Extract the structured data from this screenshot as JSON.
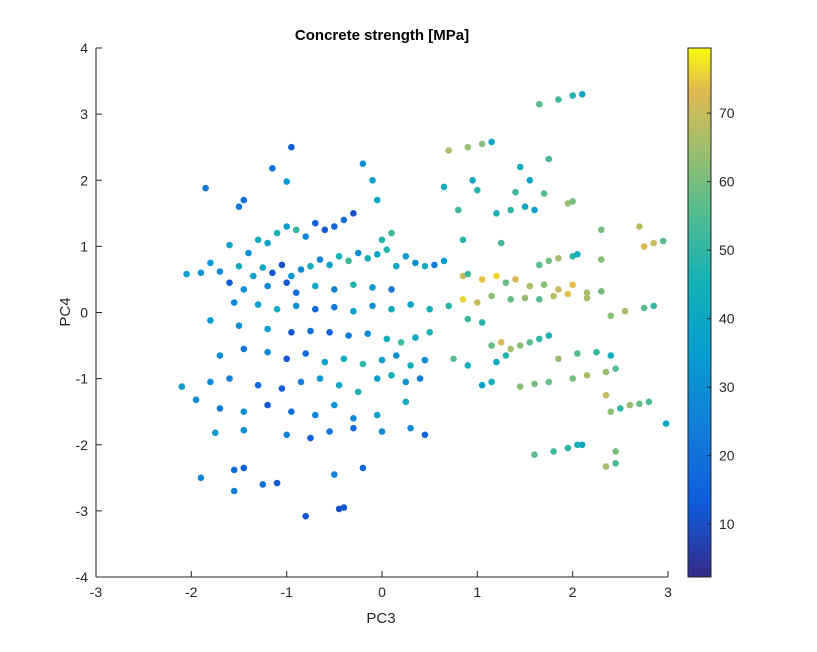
{
  "chart_data": {
    "type": "scatter",
    "title": "Concrete strength [MPa]",
    "xlabel": "PC3",
    "ylabel": "PC4",
    "xlim": [
      -3,
      3
    ],
    "ylim": [
      -4,
      4
    ],
    "xticks": [
      "-3",
      "-2",
      "-1",
      "0",
      "1",
      "2",
      "3"
    ],
    "yticks": [
      "-4",
      "-3",
      "-2",
      "-1",
      "0",
      "1",
      "2",
      "3",
      "4"
    ],
    "grid": false,
    "colormap": "parula",
    "colorbar": {
      "range": [
        2.3,
        79.5
      ],
      "ticks": [
        "10",
        "20",
        "30",
        "40",
        "50",
        "60",
        "70"
      ],
      "tick_values": [
        10,
        20,
        30,
        40,
        50,
        60,
        70
      ]
    },
    "points": [
      {
        "x": -0.95,
        "y": 2.5,
        "v": 14
      },
      {
        "x": -1.15,
        "y": 2.18,
        "v": 20
      },
      {
        "x": -1.0,
        "y": 1.98,
        "v": 34
      },
      {
        "x": -1.85,
        "y": 1.88,
        "v": 22
      },
      {
        "x": -1.5,
        "y": 1.6,
        "v": 22
      },
      {
        "x": -1.45,
        "y": 1.7,
        "v": 20
      },
      {
        "x": -1.6,
        "y": 1.02,
        "v": 40
      },
      {
        "x": -1.4,
        "y": 0.9,
        "v": 30
      },
      {
        "x": -1.3,
        "y": 1.1,
        "v": 44
      },
      {
        "x": -1.2,
        "y": 1.05,
        "v": 38
      },
      {
        "x": -1.1,
        "y": 1.2,
        "v": 46
      },
      {
        "x": -1.0,
        "y": 1.3,
        "v": 36
      },
      {
        "x": -0.9,
        "y": 1.25,
        "v": 50
      },
      {
        "x": -0.8,
        "y": 1.15,
        "v": 28
      },
      {
        "x": -0.7,
        "y": 1.35,
        "v": 14
      },
      {
        "x": -0.6,
        "y": 1.25,
        "v": 12
      },
      {
        "x": -0.5,
        "y": 1.3,
        "v": 16
      },
      {
        "x": -0.4,
        "y": 1.4,
        "v": 20
      },
      {
        "x": -0.3,
        "y": 1.5,
        "v": 10
      },
      {
        "x": -0.2,
        "y": 2.25,
        "v": 30
      },
      {
        "x": -0.1,
        "y": 2.0,
        "v": 36
      },
      {
        "x": -0.05,
        "y": 1.7,
        "v": 40
      },
      {
        "x": 0.0,
        "y": 1.1,
        "v": 48
      },
      {
        "x": 0.1,
        "y": 1.2,
        "v": 52
      },
      {
        "x": -1.8,
        "y": 0.75,
        "v": 34
      },
      {
        "x": -1.7,
        "y": 0.62,
        "v": 28
      },
      {
        "x": -1.5,
        "y": 0.7,
        "v": 42
      },
      {
        "x": -1.35,
        "y": 0.55,
        "v": 36
      },
      {
        "x": -1.25,
        "y": 0.68,
        "v": 40
      },
      {
        "x": -1.15,
        "y": 0.6,
        "v": 12
      },
      {
        "x": -1.05,
        "y": 0.72,
        "v": 10
      },
      {
        "x": -0.95,
        "y": 0.55,
        "v": 32
      },
      {
        "x": -0.85,
        "y": 0.65,
        "v": 30
      },
      {
        "x": -0.75,
        "y": 0.7,
        "v": 42
      },
      {
        "x": -0.65,
        "y": 0.8,
        "v": 26
      },
      {
        "x": -0.55,
        "y": 0.72,
        "v": 38
      },
      {
        "x": -0.45,
        "y": 0.85,
        "v": 46
      },
      {
        "x": -0.35,
        "y": 0.78,
        "v": 52
      },
      {
        "x": -0.25,
        "y": 0.9,
        "v": 30
      },
      {
        "x": -0.15,
        "y": 0.82,
        "v": 44
      },
      {
        "x": -0.05,
        "y": 0.88,
        "v": 38
      },
      {
        "x": 0.05,
        "y": 0.95,
        "v": 48
      },
      {
        "x": 0.15,
        "y": 0.7,
        "v": 40
      },
      {
        "x": 0.25,
        "y": 0.85,
        "v": 36
      },
      {
        "x": 0.35,
        "y": 0.75,
        "v": 30
      },
      {
        "x": 0.45,
        "y": 0.7,
        "v": 42
      },
      {
        "x": 0.55,
        "y": 0.72,
        "v": 24
      },
      {
        "x": 0.65,
        "y": 0.78,
        "v": 34
      },
      {
        "x": -2.05,
        "y": 0.58,
        "v": 36
      },
      {
        "x": -1.9,
        "y": 0.6,
        "v": 32
      },
      {
        "x": -1.6,
        "y": 0.45,
        "v": 14
      },
      {
        "x": -1.45,
        "y": 0.35,
        "v": 30
      },
      {
        "x": -1.2,
        "y": 0.4,
        "v": 28
      },
      {
        "x": -1.0,
        "y": 0.45,
        "v": 12
      },
      {
        "x": -0.9,
        "y": 0.3,
        "v": 18
      },
      {
        "x": -0.7,
        "y": 0.4,
        "v": 40
      },
      {
        "x": -0.5,
        "y": 0.35,
        "v": 26
      },
      {
        "x": -0.3,
        "y": 0.42,
        "v": 48
      },
      {
        "x": -0.1,
        "y": 0.38,
        "v": 36
      },
      {
        "x": 0.1,
        "y": 0.35,
        "v": 22
      },
      {
        "x": -1.55,
        "y": 0.15,
        "v": 26
      },
      {
        "x": -1.3,
        "y": 0.12,
        "v": 36
      },
      {
        "x": -1.1,
        "y": 0.05,
        "v": 44
      },
      {
        "x": -0.9,
        "y": 0.1,
        "v": 30
      },
      {
        "x": -0.7,
        "y": 0.05,
        "v": 16
      },
      {
        "x": -0.5,
        "y": 0.08,
        "v": 22
      },
      {
        "x": -0.3,
        "y": 0.02,
        "v": 36
      },
      {
        "x": -0.1,
        "y": 0.1,
        "v": 30
      },
      {
        "x": 0.1,
        "y": 0.05,
        "v": 42
      },
      {
        "x": 0.3,
        "y": 0.12,
        "v": 38
      },
      {
        "x": 0.5,
        "y": 0.05,
        "v": 44
      },
      {
        "x": 0.7,
        "y": 0.1,
        "v": 48
      },
      {
        "x": -1.8,
        "y": -0.12,
        "v": 34
      },
      {
        "x": -1.5,
        "y": -0.2,
        "v": 28
      },
      {
        "x": -1.2,
        "y": -0.25,
        "v": 36
      },
      {
        "x": -0.95,
        "y": -0.3,
        "v": 12
      },
      {
        "x": -0.75,
        "y": -0.28,
        "v": 20
      },
      {
        "x": -0.55,
        "y": -0.3,
        "v": 14
      },
      {
        "x": -0.35,
        "y": -0.35,
        "v": 24
      },
      {
        "x": -0.15,
        "y": -0.32,
        "v": 30
      },
      {
        "x": 0.05,
        "y": -0.4,
        "v": 44
      },
      {
        "x": 0.2,
        "y": -0.45,
        "v": 52
      },
      {
        "x": 0.35,
        "y": -0.38,
        "v": 40
      },
      {
        "x": 0.5,
        "y": -0.3,
        "v": 46
      },
      {
        "x": -1.7,
        "y": -0.65,
        "v": 30
      },
      {
        "x": -1.45,
        "y": -0.55,
        "v": 22
      },
      {
        "x": -1.2,
        "y": -0.6,
        "v": 28
      },
      {
        "x": -1.0,
        "y": -0.7,
        "v": 12
      },
      {
        "x": -0.8,
        "y": -0.62,
        "v": 16
      },
      {
        "x": -0.6,
        "y": -0.75,
        "v": 36
      },
      {
        "x": -0.4,
        "y": -0.7,
        "v": 42
      },
      {
        "x": -0.2,
        "y": -0.78,
        "v": 50
      },
      {
        "x": 0.0,
        "y": -0.72,
        "v": 38
      },
      {
        "x": 0.15,
        "y": -0.65,
        "v": 30
      },
      {
        "x": 0.3,
        "y": -0.8,
        "v": 44
      },
      {
        "x": 0.45,
        "y": -0.72,
        "v": 28
      },
      {
        "x": -1.8,
        "y": -1.05,
        "v": 30
      },
      {
        "x": -1.6,
        "y": -1.0,
        "v": 26
      },
      {
        "x": -1.3,
        "y": -1.1,
        "v": 18
      },
      {
        "x": -1.05,
        "y": -1.15,
        "v": 14
      },
      {
        "x": -0.85,
        "y": -1.05,
        "v": 24
      },
      {
        "x": -0.65,
        "y": -1.0,
        "v": 34
      },
      {
        "x": -0.45,
        "y": -1.1,
        "v": 40
      },
      {
        "x": -0.25,
        "y": -1.2,
        "v": 46
      },
      {
        "x": -0.05,
        "y": -1.0,
        "v": 36
      },
      {
        "x": 0.1,
        "y": -0.95,
        "v": 44
      },
      {
        "x": 0.25,
        "y": -1.05,
        "v": 32
      },
      {
        "x": 0.4,
        "y": -1.0,
        "v": 26
      },
      {
        "x": -2.1,
        "y": -1.12,
        "v": 36
      },
      {
        "x": -1.95,
        "y": -1.32,
        "v": 28
      },
      {
        "x": -1.7,
        "y": -1.45,
        "v": 22
      },
      {
        "x": -1.45,
        "y": -1.5,
        "v": 30
      },
      {
        "x": -1.2,
        "y": -1.4,
        "v": 12
      },
      {
        "x": -0.95,
        "y": -1.5,
        "v": 20
      },
      {
        "x": -0.7,
        "y": -1.55,
        "v": 26
      },
      {
        "x": -0.5,
        "y": -1.4,
        "v": 32
      },
      {
        "x": -0.3,
        "y": -1.6,
        "v": 28
      },
      {
        "x": -0.05,
        "y": -1.55,
        "v": 38
      },
      {
        "x": 0.25,
        "y": -1.35,
        "v": 42
      },
      {
        "x": -1.75,
        "y": -1.82,
        "v": 34
      },
      {
        "x": -1.45,
        "y": -1.78,
        "v": 30
      },
      {
        "x": -1.0,
        "y": -1.85,
        "v": 26
      },
      {
        "x": -0.75,
        "y": -1.9,
        "v": 14
      },
      {
        "x": -0.55,
        "y": -1.8,
        "v": 22
      },
      {
        "x": -0.3,
        "y": -1.75,
        "v": 18
      },
      {
        "x": 0.0,
        "y": -1.8,
        "v": 28
      },
      {
        "x": 0.3,
        "y": -1.75,
        "v": 30
      },
      {
        "x": 0.45,
        "y": -1.85,
        "v": 16
      },
      {
        "x": -1.55,
        "y": -2.38,
        "v": 16
      },
      {
        "x": -1.45,
        "y": -2.35,
        "v": 14
      },
      {
        "x": -1.9,
        "y": -2.5,
        "v": 26
      },
      {
        "x": -1.25,
        "y": -2.6,
        "v": 18
      },
      {
        "x": -1.1,
        "y": -2.58,
        "v": 12
      },
      {
        "x": -1.55,
        "y": -2.7,
        "v": 24
      },
      {
        "x": -0.5,
        "y": -2.45,
        "v": 26
      },
      {
        "x": -0.2,
        "y": -2.35,
        "v": 16
      },
      {
        "x": -0.8,
        "y": -3.08,
        "v": 12
      },
      {
        "x": -0.45,
        "y": -2.97,
        "v": 10
      },
      {
        "x": -0.4,
        "y": -2.95,
        "v": 12
      },
      {
        "x": 0.7,
        "y": 2.45,
        "v": 66
      },
      {
        "x": 0.9,
        "y": 2.5,
        "v": 64
      },
      {
        "x": 1.05,
        "y": 2.55,
        "v": 62
      },
      {
        "x": 1.15,
        "y": 2.58,
        "v": 38
      },
      {
        "x": 1.65,
        "y": 3.15,
        "v": 56
      },
      {
        "x": 1.85,
        "y": 3.22,
        "v": 52
      },
      {
        "x": 2.0,
        "y": 3.28,
        "v": 48
      },
      {
        "x": 2.1,
        "y": 3.3,
        "v": 40
      },
      {
        "x": 1.75,
        "y": 2.32,
        "v": 54
      },
      {
        "x": 1.45,
        "y": 2.2,
        "v": 42
      },
      {
        "x": 1.55,
        "y": 2.0,
        "v": 38
      },
      {
        "x": 0.95,
        "y": 2.0,
        "v": 40
      },
      {
        "x": 0.65,
        "y": 1.9,
        "v": 44
      },
      {
        "x": 1.0,
        "y": 1.85,
        "v": 48
      },
      {
        "x": 1.4,
        "y": 1.82,
        "v": 52
      },
      {
        "x": 1.7,
        "y": 1.8,
        "v": 56
      },
      {
        "x": 1.2,
        "y": 1.5,
        "v": 46
      },
      {
        "x": 1.35,
        "y": 1.55,
        "v": 50
      },
      {
        "x": 1.5,
        "y": 1.6,
        "v": 40
      },
      {
        "x": 1.6,
        "y": 1.55,
        "v": 36
      },
      {
        "x": 1.95,
        "y": 1.65,
        "v": 64
      },
      {
        "x": 2.0,
        "y": 1.68,
        "v": 60
      },
      {
        "x": 0.8,
        "y": 1.55,
        "v": 52
      },
      {
        "x": 2.3,
        "y": 1.25,
        "v": 60
      },
      {
        "x": 2.7,
        "y": 1.3,
        "v": 68
      },
      {
        "x": 2.75,
        "y": 1.0,
        "v": 72
      },
      {
        "x": 2.85,
        "y": 1.05,
        "v": 70
      },
      {
        "x": 2.95,
        "y": 1.08,
        "v": 56
      },
      {
        "x": 0.85,
        "y": 1.1,
        "v": 48
      },
      {
        "x": 1.25,
        "y": 1.05,
        "v": 52
      },
      {
        "x": 1.65,
        "y": 0.72,
        "v": 56
      },
      {
        "x": 1.75,
        "y": 0.78,
        "v": 60
      },
      {
        "x": 1.85,
        "y": 0.82,
        "v": 66
      },
      {
        "x": 2.0,
        "y": 0.85,
        "v": 50
      },
      {
        "x": 2.05,
        "y": 0.88,
        "v": 44
      },
      {
        "x": 2.3,
        "y": 0.8,
        "v": 62
      },
      {
        "x": 0.85,
        "y": 0.55,
        "v": 70
      },
      {
        "x": 0.9,
        "y": 0.58,
        "v": 52
      },
      {
        "x": 1.05,
        "y": 0.5,
        "v": 74
      },
      {
        "x": 1.2,
        "y": 0.55,
        "v": 76
      },
      {
        "x": 1.3,
        "y": 0.45,
        "v": 58
      },
      {
        "x": 1.4,
        "y": 0.5,
        "v": 72
      },
      {
        "x": 1.55,
        "y": 0.4,
        "v": 66
      },
      {
        "x": 1.7,
        "y": 0.42,
        "v": 62
      },
      {
        "x": 1.85,
        "y": 0.35,
        "v": 70
      },
      {
        "x": 2.0,
        "y": 0.42,
        "v": 74
      },
      {
        "x": 2.15,
        "y": 0.3,
        "v": 66
      },
      {
        "x": 2.3,
        "y": 0.32,
        "v": 60
      },
      {
        "x": 0.85,
        "y": 0.2,
        "v": 76
      },
      {
        "x": 1.0,
        "y": 0.15,
        "v": 70
      },
      {
        "x": 1.15,
        "y": 0.25,
        "v": 62
      },
      {
        "x": 1.35,
        "y": 0.2,
        "v": 58
      },
      {
        "x": 1.5,
        "y": 0.22,
        "v": 64
      },
      {
        "x": 1.65,
        "y": 0.2,
        "v": 56
      },
      {
        "x": 1.8,
        "y": 0.25,
        "v": 68
      },
      {
        "x": 1.95,
        "y": 0.28,
        "v": 74
      },
      {
        "x": 2.15,
        "y": 0.22,
        "v": 66
      },
      {
        "x": 2.4,
        "y": -0.05,
        "v": 62
      },
      {
        "x": 2.55,
        "y": 0.02,
        "v": 66
      },
      {
        "x": 2.75,
        "y": 0.07,
        "v": 56
      },
      {
        "x": 2.85,
        "y": 0.1,
        "v": 50
      },
      {
        "x": 0.9,
        "y": -0.1,
        "v": 52
      },
      {
        "x": 1.05,
        "y": -0.15,
        "v": 48
      },
      {
        "x": 1.15,
        "y": -0.5,
        "v": 58
      },
      {
        "x": 1.25,
        "y": -0.45,
        "v": 72
      },
      {
        "x": 1.35,
        "y": -0.55,
        "v": 66
      },
      {
        "x": 1.45,
        "y": -0.5,
        "v": 62
      },
      {
        "x": 1.55,
        "y": -0.45,
        "v": 56
      },
      {
        "x": 1.65,
        "y": -0.4,
        "v": 50
      },
      {
        "x": 1.75,
        "y": -0.35,
        "v": 46
      },
      {
        "x": 1.3,
        "y": -0.65,
        "v": 48
      },
      {
        "x": 1.2,
        "y": -0.75,
        "v": 42
      },
      {
        "x": 1.85,
        "y": -0.7,
        "v": 64
      },
      {
        "x": 2.05,
        "y": -0.62,
        "v": 56
      },
      {
        "x": 2.25,
        "y": -0.6,
        "v": 50
      },
      {
        "x": 2.4,
        "y": -0.65,
        "v": 44
      },
      {
        "x": 0.75,
        "y": -0.7,
        "v": 56
      },
      {
        "x": 0.9,
        "y": -0.8,
        "v": 44
      },
      {
        "x": 2.0,
        "y": -1.0,
        "v": 60
      },
      {
        "x": 2.15,
        "y": -0.95,
        "v": 66
      },
      {
        "x": 2.35,
        "y": -0.9,
        "v": 64
      },
      {
        "x": 2.45,
        "y": -0.85,
        "v": 56
      },
      {
        "x": 1.45,
        "y": -1.12,
        "v": 62
      },
      {
        "x": 1.6,
        "y": -1.08,
        "v": 60
      },
      {
        "x": 1.75,
        "y": -1.05,
        "v": 58
      },
      {
        "x": 1.15,
        "y": -1.05,
        "v": 44
      },
      {
        "x": 1.05,
        "y": -1.1,
        "v": 38
      },
      {
        "x": 2.35,
        "y": -1.25,
        "v": 70
      },
      {
        "x": 2.4,
        "y": -1.5,
        "v": 62
      },
      {
        "x": 2.5,
        "y": -1.45,
        "v": 50
      },
      {
        "x": 2.6,
        "y": -1.4,
        "v": 64
      },
      {
        "x": 2.7,
        "y": -1.38,
        "v": 58
      },
      {
        "x": 2.8,
        "y": -1.35,
        "v": 54
      },
      {
        "x": 2.98,
        "y": -1.68,
        "v": 40
      },
      {
        "x": 1.6,
        "y": -2.15,
        "v": 56
      },
      {
        "x": 1.8,
        "y": -2.1,
        "v": 52
      },
      {
        "x": 1.95,
        "y": -2.05,
        "v": 50
      },
      {
        "x": 2.05,
        "y": -2.0,
        "v": 46
      },
      {
        "x": 2.1,
        "y": -2.0,
        "v": 40
      },
      {
        "x": 2.45,
        "y": -2.1,
        "v": 60
      },
      {
        "x": 2.45,
        "y": -2.28,
        "v": 54
      },
      {
        "x": 2.35,
        "y": -2.33,
        "v": 66
      }
    ]
  }
}
